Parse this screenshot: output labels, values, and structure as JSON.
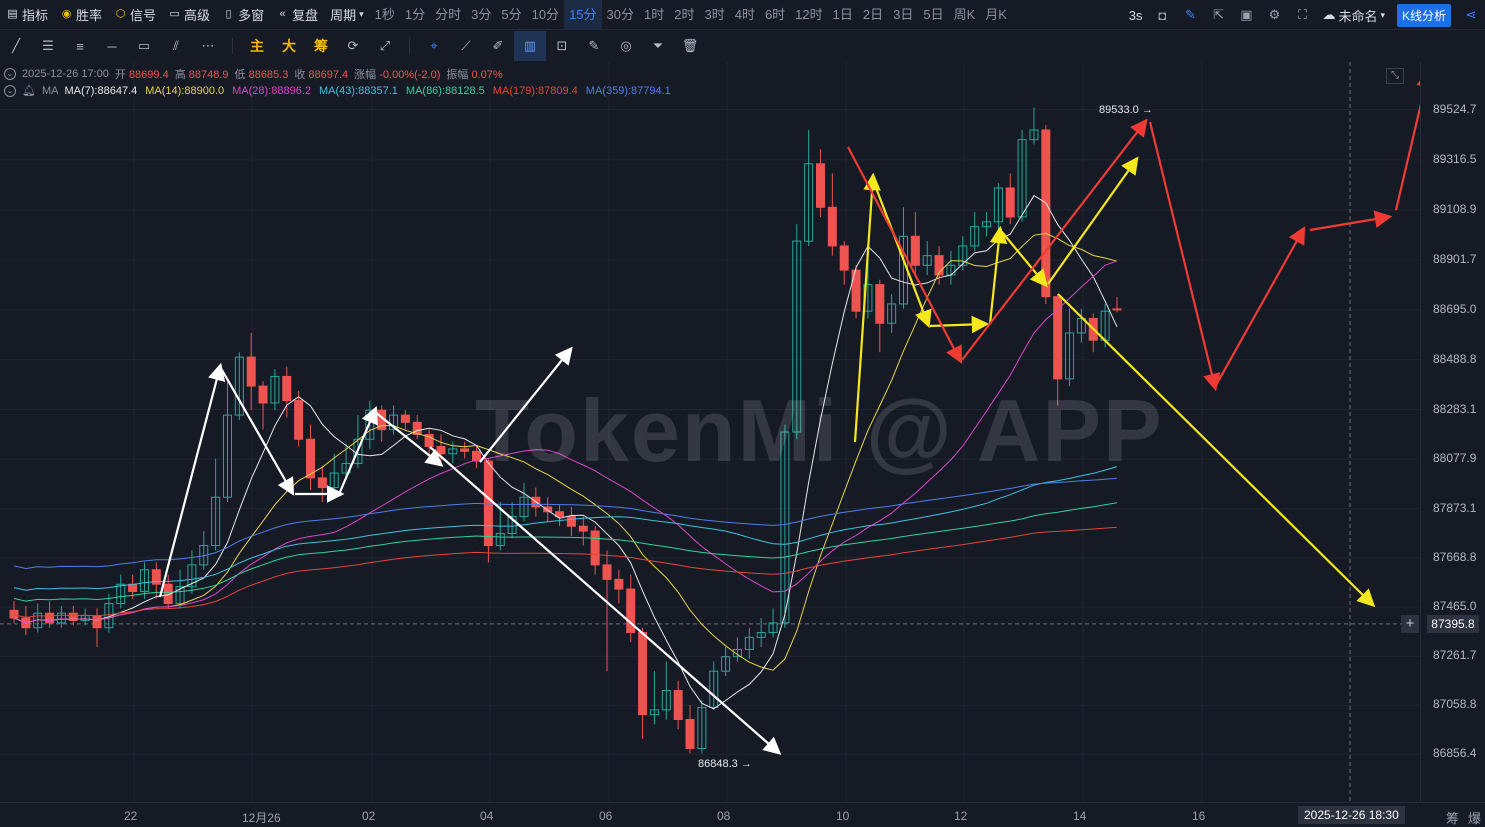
{
  "toolbar": {
    "items": [
      {
        "label": "指标",
        "icon": "indicator-icon"
      },
      {
        "label": "胜率",
        "icon": "winrate-icon"
      },
      {
        "label": "信号",
        "icon": "signal-icon"
      },
      {
        "label": "高级",
        "icon": "advanced-icon"
      },
      {
        "label": "多窗",
        "icon": "multiwindow-icon"
      },
      {
        "label": "复盘",
        "icon": "replay-icon"
      }
    ],
    "period_menu": "周期",
    "periods": [
      "1秒",
      "1分",
      "分时",
      "3分",
      "5分",
      "10分",
      "15分",
      "30分",
      "1时",
      "2时",
      "3时",
      "4时",
      "6时",
      "12时",
      "1日",
      "2日",
      "3日",
      "5日",
      "周K",
      "月K"
    ],
    "active_period": "15分",
    "refresh": "3s",
    "layout_name": "未命名",
    "kline_button": "K线分析"
  },
  "drawtools": {
    "gold_labels": [
      "主",
      "大",
      "筹"
    ]
  },
  "ohlc": {
    "datetime": "2025-12-26 17:00",
    "open_label": "开",
    "open": "88699.4",
    "high_label": "高",
    "high": "88748.9",
    "low_label": "低",
    "low": "88685.3",
    "close_label": "收",
    "close": "88697.4",
    "change_label": "涨幅",
    "change": "-0.00%(-2.0)",
    "amp_label": "振幅",
    "amp": "0.07%"
  },
  "ma": {
    "label": "MA",
    "lines": [
      {
        "text": "MA(7):88647.4",
        "color": "#e8e8e8"
      },
      {
        "text": "MA(14):88900.0",
        "color": "#e6d44a"
      },
      {
        "text": "MA(28):88896.2",
        "color": "#d946c8"
      },
      {
        "text": "MA(43):88357.1",
        "color": "#3ec2e0"
      },
      {
        "text": "MA(86):88128.5",
        "color": "#2fd39a"
      },
      {
        "text": "MA(179):87809.4",
        "color": "#e2463a"
      },
      {
        "text": "MA(359):87794.1",
        "color": "#4f7ee6"
      }
    ]
  },
  "y_ticks": [
    "89524.7",
    "89316.5",
    "89108.9",
    "88901.7",
    "88695.0",
    "88488.8",
    "88283.1",
    "88077.9",
    "87873.1",
    "87668.8",
    "87465.0",
    "87261.7",
    "87058.8",
    "86856.4"
  ],
  "last_price": "87395.8",
  "x_ticks": [
    "22",
    "12月26",
    "02",
    "04",
    "06",
    "08",
    "10",
    "12",
    "14",
    "16"
  ],
  "crosshair_time": "2025-12-26 18:30",
  "bottom_right": [
    "筹",
    "爆"
  ],
  "annotations": {
    "high": "89533.0 →",
    "low": "86848.3 →"
  },
  "watermark": "TokenMi @ APP",
  "colors": {
    "up": "#26a69a",
    "down": "#ef5350",
    "accent": "#1e6fe8"
  },
  "chart_data": {
    "type": "candlestick",
    "y_range": [
      86700,
      89680
    ],
    "candles": [
      [
        87452,
        87420,
        87490,
        87400
      ],
      [
        87420,
        87380,
        87470,
        87350
      ],
      [
        87380,
        87440,
        87480,
        87360
      ],
      [
        87440,
        87400,
        87490,
        87380
      ],
      [
        87400,
        87440,
        87470,
        87380
      ],
      [
        87440,
        87410,
        87470,
        87390
      ],
      [
        87410,
        87430,
        87460,
        87390
      ],
      [
        87430,
        87380,
        87460,
        87300
      ],
      [
        87380,
        87480,
        87520,
        87360
      ],
      [
        87480,
        87560,
        87600,
        87460
      ],
      [
        87560,
        87530,
        87600,
        87500
      ],
      [
        87530,
        87620,
        87650,
        87500
      ],
      [
        87620,
        87560,
        87650,
        87500
      ],
      [
        87560,
        87480,
        87600,
        87460
      ],
      [
        87480,
        87550,
        87620,
        87460
      ],
      [
        87550,
        87640,
        87700,
        87520
      ],
      [
        87640,
        87720,
        87780,
        87620
      ],
      [
        87720,
        87920,
        88080,
        87700
      ],
      [
        87920,
        88260,
        88400,
        87900
      ],
      [
        88260,
        88500,
        88520,
        88240
      ],
      [
        88500,
        88380,
        88600,
        88280
      ],
      [
        88380,
        88310,
        88400,
        88200
      ],
      [
        88310,
        88420,
        88450,
        88280
      ],
      [
        88420,
        88320,
        88460,
        88250
      ],
      [
        88320,
        88160,
        88360,
        88130
      ],
      [
        88160,
        88000,
        88220,
        87950
      ],
      [
        88000,
        87960,
        88050,
        87900
      ],
      [
        87960,
        88020,
        88100,
        87940
      ],
      [
        88020,
        88060,
        88140,
        87990
      ],
      [
        88060,
        88160,
        88260,
        88040
      ],
      [
        88160,
        88280,
        88320,
        88120
      ],
      [
        88280,
        88200,
        88300,
        88150
      ],
      [
        88200,
        88260,
        88300,
        88180
      ],
      [
        88260,
        88230,
        88280,
        88200
      ],
      [
        88230,
        88180,
        88260,
        88160
      ],
      [
        88180,
        88130,
        88200,
        88080
      ],
      [
        88130,
        88100,
        88180,
        88060
      ],
      [
        88100,
        88120,
        88150,
        88060
      ],
      [
        88120,
        88110,
        88150,
        88080
      ],
      [
        88110,
        88070,
        88130,
        88040
      ],
      [
        88070,
        87720,
        88080,
        87650
      ],
      [
        87720,
        87770,
        87900,
        87700
      ],
      [
        87770,
        87840,
        87900,
        87750
      ],
      [
        87840,
        87920,
        87980,
        87820
      ],
      [
        87920,
        87880,
        87960,
        87840
      ],
      [
        87880,
        87860,
        87920,
        87820
      ],
      [
        87860,
        87840,
        87890,
        87800
      ],
      [
        87840,
        87800,
        87880,
        87760
      ],
      [
        87800,
        87780,
        87840,
        87720
      ],
      [
        87780,
        87640,
        87800,
        87600
      ],
      [
        87640,
        87580,
        87700,
        87200
      ],
      [
        87580,
        87540,
        87620,
        87480
      ],
      [
        87540,
        87360,
        87600,
        87320
      ],
      [
        87360,
        87020,
        87380,
        86920
      ],
      [
        87020,
        87040,
        87200,
        86980
      ],
      [
        87040,
        87120,
        87240,
        87000
      ],
      [
        87120,
        87000,
        87160,
        86960
      ],
      [
        87000,
        86880,
        87060,
        86860
      ],
      [
        86880,
        87050,
        87080,
        86860
      ],
      [
        87050,
        87200,
        87240,
        87040
      ],
      [
        87200,
        87260,
        87300,
        87180
      ],
      [
        87260,
        87290,
        87340,
        87240
      ],
      [
        87290,
        87340,
        87380,
        87250
      ],
      [
        87340,
        87360,
        87420,
        87300
      ],
      [
        87360,
        87400,
        87460,
        87340
      ],
      [
        87400,
        88190,
        88220,
        87380
      ],
      [
        88190,
        88980,
        89050,
        88160
      ],
      [
        88980,
        89300,
        89440,
        88960
      ],
      [
        89300,
        89120,
        89360,
        89080
      ],
      [
        89120,
        88960,
        89260,
        88920
      ],
      [
        88960,
        88860,
        88980,
        88800
      ],
      [
        88860,
        88690,
        88880,
        88660
      ],
      [
        88690,
        88800,
        88900,
        88660
      ],
      [
        88800,
        88640,
        88820,
        88520
      ],
      [
        88640,
        88720,
        88760,
        88600
      ],
      [
        88720,
        89000,
        89120,
        88700
      ],
      [
        89000,
        88880,
        89100,
        88840
      ],
      [
        88880,
        88920,
        88980,
        88840
      ],
      [
        88920,
        88840,
        88960,
        88800
      ],
      [
        88840,
        88880,
        88940,
        88800
      ],
      [
        88880,
        88960,
        89000,
        88860
      ],
      [
        88960,
        89040,
        89100,
        88940
      ],
      [
        89040,
        89060,
        89100,
        89000
      ],
      [
        89060,
        89200,
        89220,
        89030
      ],
      [
        89200,
        89080,
        89260,
        89050
      ],
      [
        89080,
        89400,
        89440,
        89060
      ],
      [
        89400,
        89440,
        89533,
        89380
      ],
      [
        89440,
        88750,
        89460,
        88720
      ],
      [
        88750,
        88410,
        88760,
        88300
      ],
      [
        88410,
        88600,
        88700,
        88380
      ],
      [
        88600,
        88660,
        88700,
        88560
      ],
      [
        88660,
        88570,
        88680,
        88520
      ],
      [
        88570,
        88690,
        88720,
        88540
      ],
      [
        88699.4,
        88697.4,
        88748.9,
        88685.3
      ]
    ]
  }
}
